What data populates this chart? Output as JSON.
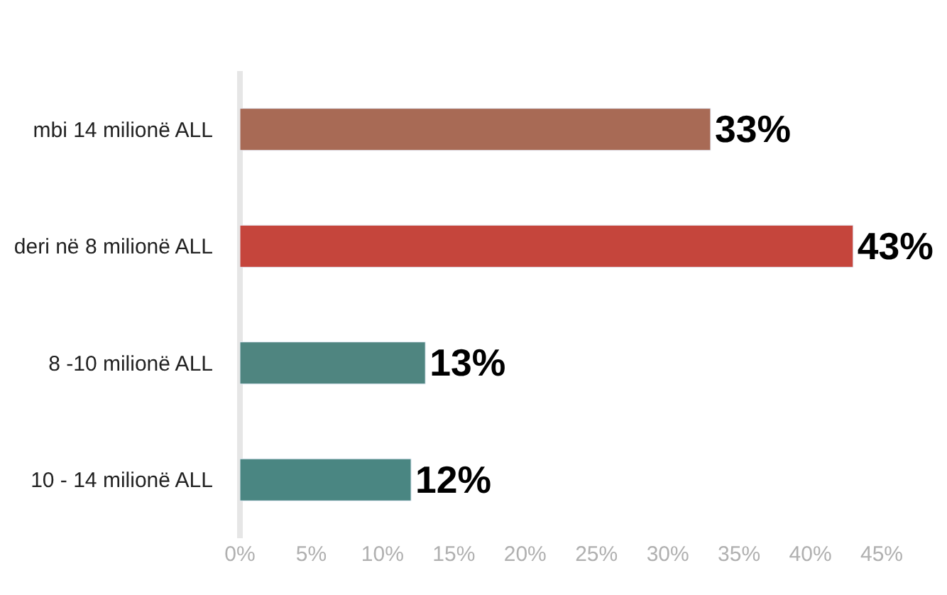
{
  "chart_data": {
    "type": "bar",
    "orientation": "horizontal",
    "categories": [
      "mbi 14 milionë ALL",
      "deri në 8 milionë ALL",
      "8 -10 milionë ALL",
      "10 - 14 milionë ALL"
    ],
    "values": [
      33,
      43,
      13,
      12
    ],
    "colors": [
      "#a86a55",
      "#c5453c",
      "#4f8580",
      "#4a8682"
    ],
    "value_labels": [
      "33%",
      "43%",
      "13%",
      "12%"
    ],
    "xlim": [
      0,
      45
    ],
    "xticks": [
      {
        "value": 0,
        "label": "0%"
      },
      {
        "value": 5,
        "label": "5%"
      },
      {
        "value": 10,
        "label": "10%"
      },
      {
        "value": 15,
        "label": "15%"
      },
      {
        "value": 20,
        "label": "20%"
      },
      {
        "value": 25,
        "label": "25%"
      },
      {
        "value": 30,
        "label": "30%"
      },
      {
        "value": 35,
        "label": "35%"
      },
      {
        "value": 40,
        "label": "40%"
      },
      {
        "value": 45,
        "label": "45%"
      }
    ],
    "legend": false
  }
}
